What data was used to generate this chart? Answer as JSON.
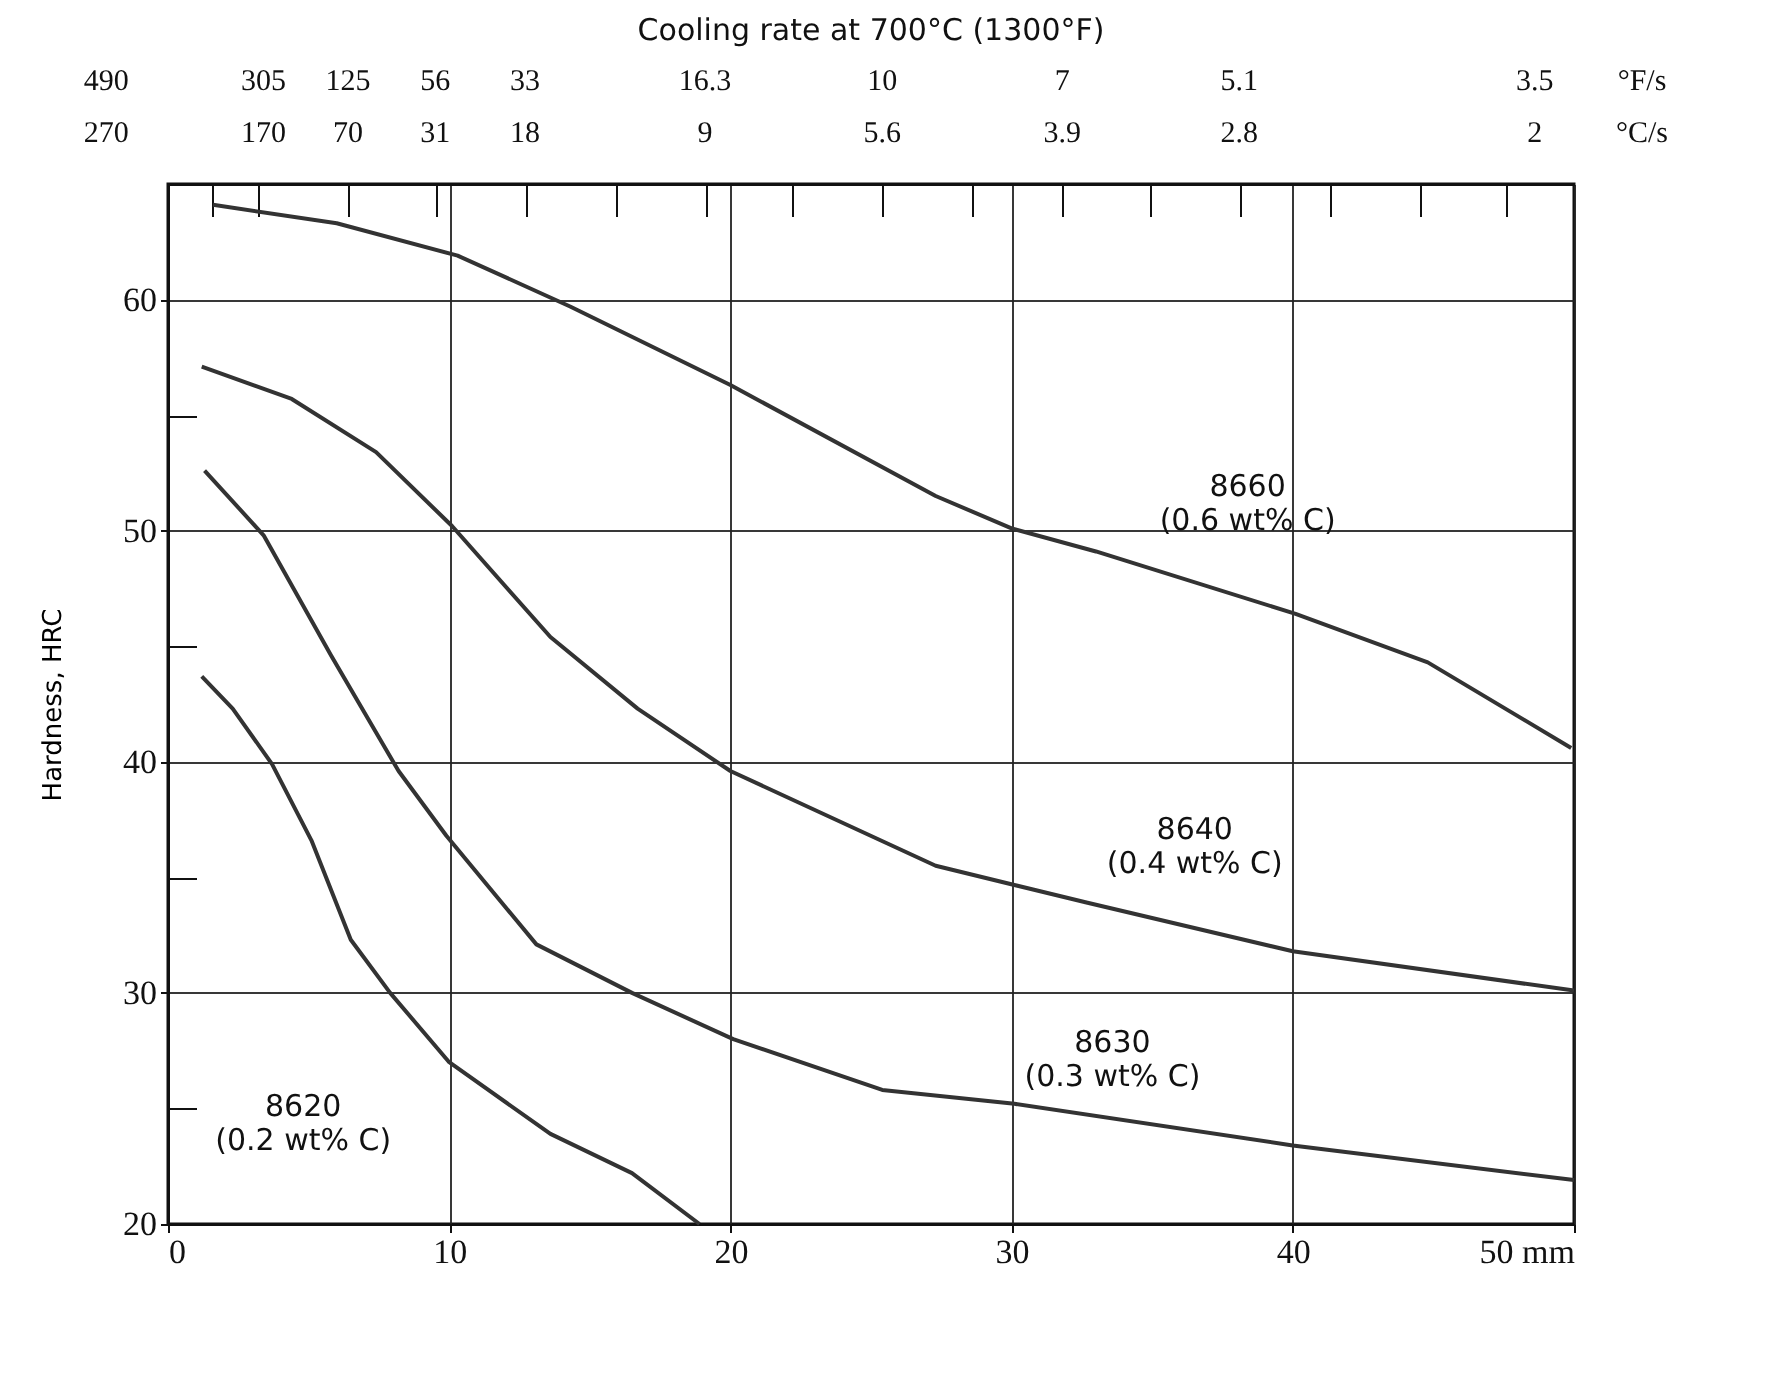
{
  "chart_data": {
    "type": "line",
    "title": "Cooling rate at 700°C (1300°F)",
    "ylabel": "Hardness, HRC",
    "xlim": [
      0,
      50
    ],
    "xticks": [
      0,
      10,
      20,
      30,
      40,
      {
        "value": 50,
        "label": "50 mm"
      }
    ],
    "ylim": [
      20,
      65
    ],
    "yticks": [
      20,
      {
        "value": 25,
        "label": null
      },
      30,
      {
        "value": 35,
        "label": null
      },
      40,
      {
        "value": 45,
        "label": null
      },
      50,
      {
        "value": 55,
        "label": null
      },
      60
    ],
    "grid": true,
    "legend": false,
    "marker": "none",
    "line_style": "solid",
    "series": [
      {
        "name": "8660 (0.6 wt% C)",
        "color": "#333333",
        "x": [
          1.6,
          6.0,
          10.3,
          14.3,
          20.0,
          27.3,
          30.0,
          33.0,
          40.1,
          44.8,
          49.9
        ],
        "values": [
          64.1,
          63.3,
          61.9,
          59.7,
          56.3,
          51.5,
          50.1,
          49.1,
          46.4,
          44.3,
          40.6
        ]
      },
      {
        "name": "8640 (0.4 wt% C)",
        "color": "#333333",
        "x": [
          1.2,
          4.4,
          7.4,
          10.1,
          13.6,
          16.7,
          20.0,
          27.3,
          32.7,
          40.0,
          50.0
        ],
        "values": [
          57.1,
          55.7,
          53.4,
          50.2,
          45.4,
          42.3,
          39.6,
          35.5,
          33.9,
          31.8,
          30.1
        ]
      },
      {
        "name": "8630 (0.3 wt% C)",
        "color": "#333333",
        "x": [
          1.3,
          3.4,
          5.8,
          8.2,
          9.9,
          13.1,
          16.5,
          20.1,
          25.4,
          30.1,
          40.0,
          50.0
        ],
        "values": [
          52.6,
          49.8,
          44.6,
          39.6,
          36.8,
          32.1,
          30.0,
          28.0,
          25.8,
          25.2,
          23.4,
          21.9
        ]
      },
      {
        "name": "8620 (0.2 wt% C)",
        "color": "#333333",
        "x": [
          1.2,
          2.3,
          3.7,
          5.1,
          6.5,
          7.9,
          10.0,
          13.6,
          16.5,
          18.9
        ],
        "values": [
          43.7,
          42.3,
          39.9,
          36.6,
          32.3,
          30.0,
          27.0,
          23.9,
          22.2,
          20.0
        ]
      }
    ],
    "annotations": [
      "490 305 125 56 33 16.3 10 7 5.1 3.5 °F/s",
      "270 170 70 31 18 9 5.6 3.9 2.8 2 °C/s"
    ]
  }
}
